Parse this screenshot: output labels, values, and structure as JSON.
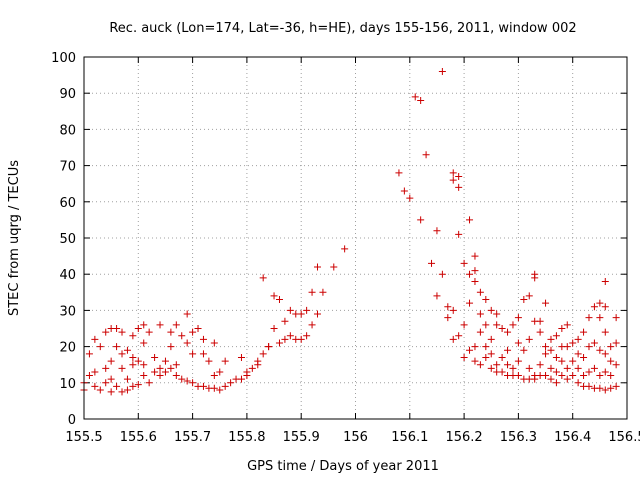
{
  "chart_data": {
    "type": "scatter",
    "title": "Rec. auck (Lon=174, Lat=-36, h=HE), days 155-156, 2011, window 002",
    "xlabel": "GPS time / Days of year 2011",
    "ylabel": "STEC from uqrg / TECUs",
    "xlim": [
      155.5,
      156.5
    ],
    "ylim": [
      0,
      100
    ],
    "xticks": [
      "155.5",
      "155.6",
      "155.7",
      "155.8",
      "155.9",
      "156",
      "156.1",
      "156.2",
      "156.3",
      "156.4",
      "156.5"
    ],
    "yticks": [
      "0",
      "10",
      "20",
      "30",
      "40",
      "50",
      "60",
      "70",
      "80",
      "90",
      "100"
    ],
    "grid": true,
    "marker_color": "#cc0000",
    "series": [
      {
        "marker": "plus",
        "points": [
          [
            155.5,
            8
          ],
          [
            155.5,
            10
          ],
          [
            155.51,
            12
          ],
          [
            155.51,
            18
          ],
          [
            155.52,
            9
          ],
          [
            155.52,
            13
          ],
          [
            155.52,
            22
          ],
          [
            155.53,
            8
          ],
          [
            155.53,
            20
          ],
          [
            155.54,
            10
          ],
          [
            155.54,
            14
          ],
          [
            155.54,
            24
          ],
          [
            155.55,
            7.5
          ],
          [
            155.55,
            11
          ],
          [
            155.55,
            16
          ],
          [
            155.55,
            25
          ],
          [
            155.56,
            9
          ],
          [
            155.56,
            20
          ],
          [
            155.56,
            25
          ],
          [
            155.57,
            7.5
          ],
          [
            155.57,
            14
          ],
          [
            155.57,
            18
          ],
          [
            155.57,
            24
          ],
          [
            155.58,
            8
          ],
          [
            155.58,
            11
          ],
          [
            155.58,
            19
          ],
          [
            155.59,
            9
          ],
          [
            155.59,
            15
          ],
          [
            155.59,
            17
          ],
          [
            155.59,
            23
          ],
          [
            155.6,
            9.5
          ],
          [
            155.6,
            16
          ],
          [
            155.6,
            25
          ],
          [
            155.61,
            12
          ],
          [
            155.61,
            15
          ],
          [
            155.61,
            21
          ],
          [
            155.61,
            26
          ],
          [
            155.62,
            10
          ],
          [
            155.62,
            24
          ],
          [
            155.63,
            13
          ],
          [
            155.63,
            17
          ],
          [
            155.64,
            12
          ],
          [
            155.64,
            14
          ],
          [
            155.64,
            26
          ],
          [
            155.65,
            13
          ],
          [
            155.65,
            16
          ],
          [
            155.66,
            14
          ],
          [
            155.66,
            20
          ],
          [
            155.66,
            24
          ],
          [
            155.67,
            12
          ],
          [
            155.67,
            15
          ],
          [
            155.67,
            26
          ],
          [
            155.68,
            11
          ],
          [
            155.68,
            23
          ],
          [
            155.69,
            10.5
          ],
          [
            155.69,
            21
          ],
          [
            155.69,
            29
          ],
          [
            155.7,
            10
          ],
          [
            155.7,
            18
          ],
          [
            155.7,
            24
          ],
          [
            155.71,
            9
          ],
          [
            155.71,
            25
          ],
          [
            155.72,
            9
          ],
          [
            155.72,
            18
          ],
          [
            155.72,
            22
          ],
          [
            155.73,
            8.5
          ],
          [
            155.73,
            16
          ],
          [
            155.74,
            8.5
          ],
          [
            155.74,
            12
          ],
          [
            155.74,
            21
          ],
          [
            155.75,
            8
          ],
          [
            155.75,
            13
          ],
          [
            155.76,
            9
          ],
          [
            155.76,
            16
          ],
          [
            155.77,
            10
          ],
          [
            155.78,
            11
          ],
          [
            155.79,
            11
          ],
          [
            155.79,
            17
          ],
          [
            155.8,
            12
          ],
          [
            155.8,
            13
          ],
          [
            155.81,
            14
          ],
          [
            155.82,
            15
          ],
          [
            155.82,
            16
          ],
          [
            155.83,
            18
          ],
          [
            155.83,
            39
          ],
          [
            155.84,
            20
          ],
          [
            155.84,
            20
          ],
          [
            155.85,
            25
          ],
          [
            155.85,
            34
          ],
          [
            155.86,
            21
          ],
          [
            155.86,
            33
          ],
          [
            155.87,
            22
          ],
          [
            155.87,
            27
          ],
          [
            155.88,
            23
          ],
          [
            155.88,
            30
          ],
          [
            155.89,
            22
          ],
          [
            155.89,
            29
          ],
          [
            155.9,
            22
          ],
          [
            155.9,
            29
          ],
          [
            155.91,
            23
          ],
          [
            155.91,
            30
          ],
          [
            155.92,
            26
          ],
          [
            155.92,
            35
          ],
          [
            155.93,
            29
          ],
          [
            155.93,
            42
          ],
          [
            155.94,
            35
          ],
          [
            155.96,
            42
          ],
          [
            155.98,
            47
          ],
          [
            156.08,
            68
          ],
          [
            156.09,
            63
          ],
          [
            156.1,
            61
          ],
          [
            156.11,
            89
          ],
          [
            156.12,
            55
          ],
          [
            156.12,
            88
          ],
          [
            156.13,
            73
          ],
          [
            156.14,
            43
          ],
          [
            156.15,
            34
          ],
          [
            156.15,
            52
          ],
          [
            156.16,
            40
          ],
          [
            156.16,
            96
          ],
          [
            156.17,
            28
          ],
          [
            156.17,
            31
          ],
          [
            156.18,
            22
          ],
          [
            156.18,
            30
          ],
          [
            156.18,
            66
          ],
          [
            156.18,
            68
          ],
          [
            156.19,
            23
          ],
          [
            156.19,
            64
          ],
          [
            156.19,
            67
          ],
          [
            156.19,
            51
          ],
          [
            156.2,
            17
          ],
          [
            156.2,
            26
          ],
          [
            156.2,
            43
          ],
          [
            156.21,
            19
          ],
          [
            156.21,
            32
          ],
          [
            156.21,
            40
          ],
          [
            156.21,
            55
          ],
          [
            156.22,
            16
          ],
          [
            156.22,
            20
          ],
          [
            156.22,
            38
          ],
          [
            156.22,
            41
          ],
          [
            156.22,
            45
          ],
          [
            156.23,
            15
          ],
          [
            156.23,
            24
          ],
          [
            156.23,
            29
          ],
          [
            156.23,
            35
          ],
          [
            156.24,
            17
          ],
          [
            156.24,
            20
          ],
          [
            156.24,
            26
          ],
          [
            156.24,
            33
          ],
          [
            156.25,
            14
          ],
          [
            156.25,
            18
          ],
          [
            156.25,
            22
          ],
          [
            156.25,
            30
          ],
          [
            156.26,
            13
          ],
          [
            156.26,
            15
          ],
          [
            156.26,
            26
          ],
          [
            156.26,
            29
          ],
          [
            156.27,
            13
          ],
          [
            156.27,
            17
          ],
          [
            156.27,
            25
          ],
          [
            156.28,
            12
          ],
          [
            156.28,
            15
          ],
          [
            156.28,
            19
          ],
          [
            156.28,
            24
          ],
          [
            156.29,
            12
          ],
          [
            156.29,
            14
          ],
          [
            156.29,
            26
          ],
          [
            156.3,
            12
          ],
          [
            156.3,
            16
          ],
          [
            156.3,
            21
          ],
          [
            156.3,
            28
          ],
          [
            156.31,
            11
          ],
          [
            156.31,
            19
          ],
          [
            156.31,
            33
          ],
          [
            156.32,
            11
          ],
          [
            156.32,
            14
          ],
          [
            156.32,
            22
          ],
          [
            156.32,
            34
          ],
          [
            156.33,
            11
          ],
          [
            156.33,
            12
          ],
          [
            156.33,
            27
          ],
          [
            156.33,
            39
          ],
          [
            156.33,
            40
          ],
          [
            156.34,
            12
          ],
          [
            156.34,
            15
          ],
          [
            156.34,
            24
          ],
          [
            156.34,
            27
          ],
          [
            156.35,
            12
          ],
          [
            156.35,
            18
          ],
          [
            156.35,
            20
          ],
          [
            156.35,
            32
          ],
          [
            156.36,
            11
          ],
          [
            156.36,
            14
          ],
          [
            156.36,
            19
          ],
          [
            156.36,
            22
          ],
          [
            156.37,
            10
          ],
          [
            156.37,
            13
          ],
          [
            156.37,
            17
          ],
          [
            156.37,
            23
          ],
          [
            156.38,
            12
          ],
          [
            156.38,
            16
          ],
          [
            156.38,
            20
          ],
          [
            156.38,
            25
          ],
          [
            156.39,
            11
          ],
          [
            156.39,
            14
          ],
          [
            156.39,
            20
          ],
          [
            156.39,
            26
          ],
          [
            156.4,
            12
          ],
          [
            156.4,
            16
          ],
          [
            156.4,
            21
          ],
          [
            156.41,
            10
          ],
          [
            156.41,
            14
          ],
          [
            156.41,
            18
          ],
          [
            156.41,
            22
          ],
          [
            156.42,
            9
          ],
          [
            156.42,
            12
          ],
          [
            156.42,
            17
          ],
          [
            156.42,
            24
          ],
          [
            156.43,
            9
          ],
          [
            156.43,
            13
          ],
          [
            156.43,
            20
          ],
          [
            156.43,
            28
          ],
          [
            156.44,
            8.5
          ],
          [
            156.44,
            14
          ],
          [
            156.44,
            21
          ],
          [
            156.44,
            31
          ],
          [
            156.45,
            8.5
          ],
          [
            156.45,
            12
          ],
          [
            156.45,
            19
          ],
          [
            156.45,
            28
          ],
          [
            156.45,
            32
          ],
          [
            156.46,
            8
          ],
          [
            156.46,
            13
          ],
          [
            156.46,
            18
          ],
          [
            156.46,
            24
          ],
          [
            156.46,
            31
          ],
          [
            156.46,
            38
          ],
          [
            156.47,
            8.5
          ],
          [
            156.47,
            12
          ],
          [
            156.47,
            16
          ],
          [
            156.47,
            20
          ],
          [
            156.48,
            9
          ],
          [
            156.48,
            15
          ],
          [
            156.48,
            21
          ],
          [
            156.48,
            28
          ]
        ]
      }
    ]
  }
}
